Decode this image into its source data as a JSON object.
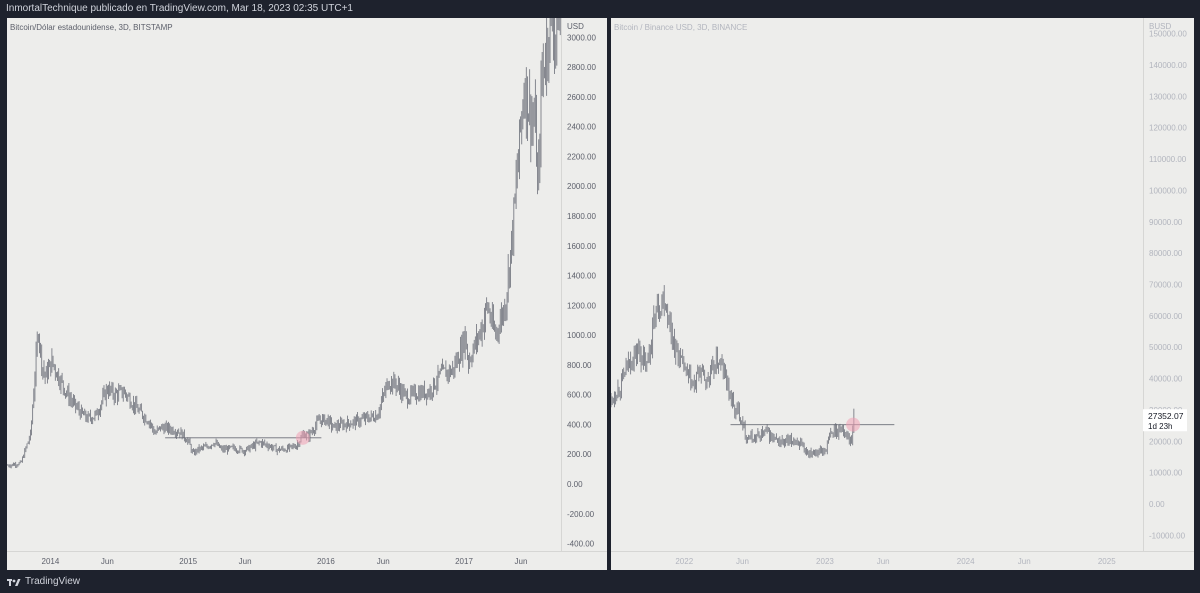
{
  "header": {
    "text": "InmortalTechnique publicado en TradingView.com, Mar 18, 2023 02:35 UTC+1"
  },
  "footer": {
    "brand": "TradingView",
    "icon": "tradingview-logo-icon"
  },
  "colors": {
    "background": "#ededeb",
    "candles": "#6b6e78",
    "axis_text": "#5d606b",
    "axis_text_light": "#b2b5be",
    "highlight": "#f0a0b4",
    "frame": "#1e222d"
  },
  "chart_data": [
    {
      "type": "candlestick",
      "title": "Bitcoin/Dólar estadounidense, 3D, BITSTAMP",
      "unit": "USD",
      "ylim": [
        -450,
        3130
      ],
      "y_ticks": [
        -400,
        -200,
        0,
        200,
        400,
        600,
        800,
        1000,
        1200,
        1400,
        1600,
        1800,
        2000,
        2200,
        2400,
        2600,
        2800,
        3000
      ],
      "x_ticks": [
        "2014",
        "Jun",
        "2015",
        "Jun",
        "2016",
        "Jun",
        "2017",
        "Jun"
      ],
      "x_tick_dates": [
        "2014-01-01",
        "2014-06-01",
        "2015-01-01",
        "2015-06-01",
        "2016-01-01",
        "2016-06-01",
        "2017-01-01",
        "2017-06-01"
      ],
      "x_range": [
        "2013-09-08",
        "2017-09-15"
      ],
      "series": [
        {
          "x": [
            "2013-09-10",
            "2013-10-15",
            "2013-11-10",
            "2013-11-20",
            "2013-11-30",
            "2013-12-08",
            "2013-12-18",
            "2014-01-05",
            "2014-02-05",
            "2014-02-25",
            "2014-03-25",
            "2014-04-10",
            "2014-05-01",
            "2014-06-01",
            "2014-06-20",
            "2014-07-15",
            "2014-08-20",
            "2014-09-20",
            "2014-10-05",
            "2014-10-20",
            "2014-11-15",
            "2014-12-10",
            "2015-01-01",
            "2015-01-14",
            "2015-01-25",
            "2015-02-20",
            "2015-03-10",
            "2015-04-01",
            "2015-05-01",
            "2015-06-01",
            "2015-07-10",
            "2015-08-01",
            "2015-08-25",
            "2015-09-20",
            "2015-10-15",
            "2015-11-04",
            "2015-11-15",
            "2015-12-15",
            "2016-01-05",
            "2016-01-20",
            "2016-02-15",
            "2016-03-15",
            "2016-04-15",
            "2016-05-15",
            "2016-06-15",
            "2016-07-05",
            "2016-08-02",
            "2016-09-01",
            "2016-10-01",
            "2016-11-01",
            "2016-12-01",
            "2016-12-25",
            "2017-01-04",
            "2017-01-12",
            "2017-01-25",
            "2017-02-20",
            "2017-03-03",
            "2017-03-25",
            "2017-04-20",
            "2017-05-10",
            "2017-05-25",
            "2017-06-10",
            "2017-06-25",
            "2017-07-10",
            "2017-07-16",
            "2017-07-25",
            "2017-08-05",
            "2017-08-15",
            "2017-08-25",
            "2017-09-01",
            "2017-09-10",
            "2017-09-14"
          ],
          "y": [
            125,
            140,
            340,
            700,
            1050,
            830,
            720,
            820,
            650,
            560,
            470,
            440,
            460,
            640,
            600,
            620,
            500,
            420,
            340,
            380,
            370,
            350,
            290,
            200,
            230,
            250,
            280,
            230,
            240,
            225,
            280,
            260,
            230,
            235,
            260,
            340,
            320,
            430,
            430,
            380,
            400,
            415,
            440,
            460,
            690,
            670,
            580,
            610,
            620,
            740,
            760,
            900,
            1000,
            820,
            900,
            1070,
            1200,
            1000,
            1200,
            1700,
            2200,
            2700,
            2500,
            2400,
            1900,
            2700,
            2900,
            3100,
            3150,
            3000,
            3300,
            3000
          ]
        }
      ],
      "horizontal_line": {
        "value": 310,
        "from": "2014-11-01",
        "to": "2015-12-20"
      },
      "highlight": {
        "date": "2015-11-01",
        "value": 310
      }
    },
    {
      "type": "candlestick",
      "title": "Bitcoin / Binance USD, 3D, BINANCE",
      "unit": "BUSD",
      "ylim": [
        -15000,
        155000
      ],
      "y_ticks": [
        -10000,
        0,
        10000,
        20000,
        30000,
        40000,
        50000,
        60000,
        70000,
        80000,
        90000,
        100000,
        110000,
        120000,
        130000,
        140000,
        150000
      ],
      "x_ticks": [
        "2022",
        "Jun",
        "2023",
        "Jun",
        "2024",
        "Jun",
        "2025"
      ],
      "x_tick_dates": [
        "2022-01-01",
        "2022-06-01",
        "2023-01-01",
        "2023-06-01",
        "2024-01-01",
        "2024-06-01",
        "2025-01-01"
      ],
      "x_range": [
        "2021-06-25",
        "2025-04-05"
      ],
      "series": [
        {
          "x": [
            "2021-06-25",
            "2021-07-20",
            "2021-08-10",
            "2021-09-05",
            "2021-09-25",
            "2021-10-20",
            "2021-11-10",
            "2021-11-25",
            "2021-12-10",
            "2022-01-05",
            "2022-01-25",
            "2022-02-10",
            "2022-03-01",
            "2022-03-30",
            "2022-04-20",
            "2022-05-10",
            "2022-05-25",
            "2022-06-13",
            "2022-07-05",
            "2022-08-01",
            "2022-08-25",
            "2022-09-20",
            "2022-10-20",
            "2022-11-09",
            "2022-12-01",
            "2022-12-30",
            "2023-01-20",
            "2023-02-15",
            "2023-03-10",
            "2023-03-17"
          ],
          "y": [
            33000,
            38000,
            45000,
            49000,
            43000,
            62000,
            66000,
            57000,
            49000,
            42000,
            37000,
            43000,
            39000,
            46000,
            40000,
            30000,
            29000,
            21000,
            21000,
            23000,
            20000,
            19500,
            20500,
            16500,
            17000,
            16600,
            23000,
            24000,
            20000,
            27350
          ]
        }
      ],
      "horizontal_line": {
        "value": 25300,
        "from": "2022-05-01",
        "to": "2023-06-30"
      },
      "highlight": {
        "date": "2023-03-15",
        "value": 25300
      },
      "last_price_label": {
        "value": "27352.07",
        "countdown": "1d 23h"
      }
    }
  ]
}
